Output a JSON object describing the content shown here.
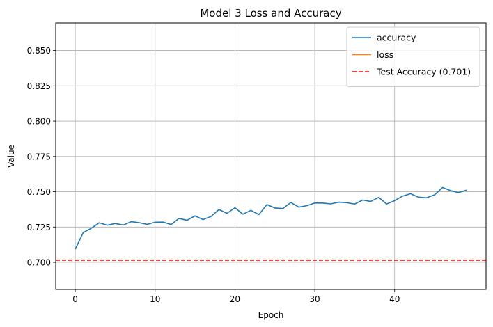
{
  "chart_data": {
    "type": "line",
    "title": "Model 3 Loss and Accuracy",
    "xlabel": "Epoch",
    "ylabel": "Value",
    "xlim": [
      -2.45,
      51.45
    ],
    "ylim": [
      0.6808,
      0.8695
    ],
    "xticks": [
      0,
      10,
      20,
      30,
      40
    ],
    "xtick_labels": [
      "0",
      "10",
      "20",
      "30",
      "40"
    ],
    "yticks": [
      0.7,
      0.725,
      0.75,
      0.775,
      0.8,
      0.825,
      0.85
    ],
    "ytick_labels": [
      "0.700",
      "0.725",
      "0.750",
      "0.775",
      "0.800",
      "0.825",
      "0.850"
    ],
    "grid": true,
    "legend_position": "top-right",
    "series": [
      {
        "name": "accuracy",
        "color": "#1f77b4",
        "x": [
          0,
          1,
          2,
          3,
          4,
          5,
          6,
          7,
          8,
          9,
          10,
          11,
          12,
          13,
          14,
          15,
          16,
          17,
          18,
          19,
          20,
          21,
          22,
          23,
          24,
          25,
          26,
          27,
          28,
          29,
          30,
          31,
          32,
          33,
          34,
          35,
          36,
          37,
          38,
          39,
          40,
          41,
          42,
          43,
          44,
          45,
          46,
          47,
          48,
          49
        ],
        "values": [
          0.7093,
          0.7211,
          0.7241,
          0.728,
          0.7263,
          0.7275,
          0.7264,
          0.7288,
          0.7281,
          0.7269,
          0.7284,
          0.7285,
          0.7268,
          0.7311,
          0.7298,
          0.7329,
          0.7303,
          0.7325,
          0.7374,
          0.7347,
          0.7387,
          0.7341,
          0.7368,
          0.7338,
          0.7409,
          0.7385,
          0.7381,
          0.7424,
          0.7391,
          0.7401,
          0.742,
          0.742,
          0.7414,
          0.7426,
          0.7422,
          0.7413,
          0.7441,
          0.7431,
          0.746,
          0.7413,
          0.7437,
          0.7469,
          0.7486,
          0.7461,
          0.7457,
          0.7478,
          0.753,
          0.7508,
          0.7494,
          0.7511
        ]
      },
      {
        "name": "loss",
        "color": "#ff7f0e",
        "x": [],
        "values": []
      }
    ],
    "reference_lines": [
      {
        "name": "Test Accuracy (0.701)",
        "value": 0.7015,
        "color": "#ff0000",
        "style": "dashed"
      }
    ]
  }
}
